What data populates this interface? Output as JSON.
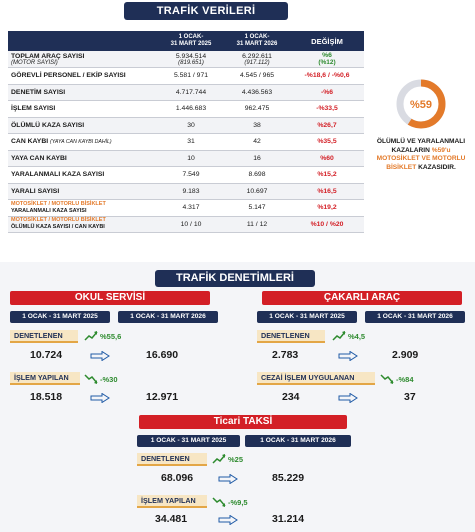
{
  "top_banner": "TRAFİK VERİLERİ",
  "table": {
    "headers": [
      "",
      "1 OCAK-\n31 MART 2025",
      "1 OCAK-\n31 MART 2026",
      "DEĞİŞİM"
    ],
    "rows": [
      {
        "label": "TOPLAM ARAÇ SAYISI",
        "sub": "(MOTOR SAYISI)",
        "v1": "5.934.514",
        "v1sub": "(819.651)",
        "v2": "6.292.611",
        "v2sub": "(917.112)",
        "chg": "%6",
        "chgsub": "(%12)",
        "chg_color": "green"
      },
      {
        "label": "GÖREVLİ PERSONEL / EKİP SAYISI",
        "v1": "5.581 / 971",
        "v2": "4.545 / 965",
        "chg": "-%18,6 / -%0,6"
      },
      {
        "label": "DENETİM SAYISI",
        "v1": "4.717.744",
        "v2": "4.436.563",
        "chg": "-%6"
      },
      {
        "label": "İŞLEM SAYISI",
        "v1": "1.446.683",
        "v2": "962.475",
        "chg": "-%33,5"
      },
      {
        "label": "ÖLÜMLÜ KAZA SAYISI",
        "v1": "30",
        "v2": "38",
        "chg": "%26,7"
      },
      {
        "label": "CAN KAYBI",
        "inline_sub": "(YAYA CAN KAYBI DAHİL)",
        "v1": "31",
        "v2": "42",
        "chg": "%35,5"
      },
      {
        "label": "YAYA CAN KAYBI",
        "v1": "10",
        "v2": "16",
        "chg": "%60"
      },
      {
        "label": "YARALANMALI KAZA SAYISI",
        "v1": "7.549",
        "v2": "8.698",
        "chg": "%15,2"
      },
      {
        "label": "YARALI SAYISI",
        "v1": "9.183",
        "v2": "10.697",
        "chg": "%16,5"
      },
      {
        "label_orange": "MOTOSİKLET / MOTORLU BİSİKLET",
        "label_small": "YARALANMALI KAZA SAYISI",
        "v1": "4.317",
        "v2": "5.147",
        "chg": "%19,2"
      },
      {
        "label_orange": "MOTOSİKLET / MOTORLU BİSİKLET",
        "label_small": "ÖLÜMLÜ KAZA SAYISI / CAN KAYBI",
        "v1": "10 / 10",
        "v2": "11 / 12",
        "chg": "%10 / %20"
      }
    ]
  },
  "donut": {
    "percent_label": "%59",
    "percent": 59,
    "text_a": "ÖLÜMLÜ VE YARALANMALI",
    "text_b": "KAZALARIN",
    "text_c": "%59'u",
    "text_d": "MOTOSİKLET VE MOTORLU",
    "text_e": "BİSİKLET",
    "text_f": "KAZASIDIR.",
    "color": "#e37a2a"
  },
  "mid_banner": "TRAFİK DENETİMLERİ",
  "date_2025": "1 OCAK - 31 MART 2025",
  "date_2026": "1 OCAK - 31 MART 2026",
  "okul": {
    "title": "OKUL SERVİSİ",
    "denetlenen_label": "DENETLENEN",
    "denetlenen_trend": "%55,6",
    "denetlenen_2025": "10.724",
    "denetlenen_2026": "16.690",
    "islem_label": "İŞLEM YAPILAN",
    "islem_trend": "-%30",
    "islem_2025": "18.518",
    "islem_2026": "12.971"
  },
  "cakarli": {
    "title": "ÇAKARLI ARAÇ",
    "denetlenen_label": "DENETLENEN",
    "denetlenen_trend": "%4,5",
    "denetlenen_2025": "2.783",
    "denetlenen_2026": "2.909",
    "islem_label": "CEZAİ İŞLEM UYGULANAN",
    "islem_trend": "-%84",
    "islem_2025": "234",
    "islem_2026": "37"
  },
  "ticari": {
    "title": "Ticari TAKSİ",
    "denetlenen_label": "DENETLENEN",
    "denetlenen_trend": "%25",
    "denetlenen_2025": "68.096",
    "denetlenen_2026": "85.229",
    "islem_label": "İŞLEM YAPILAN",
    "islem_trend": "-%9,5",
    "islem_2025": "34.481",
    "islem_2026": "31.214"
  }
}
